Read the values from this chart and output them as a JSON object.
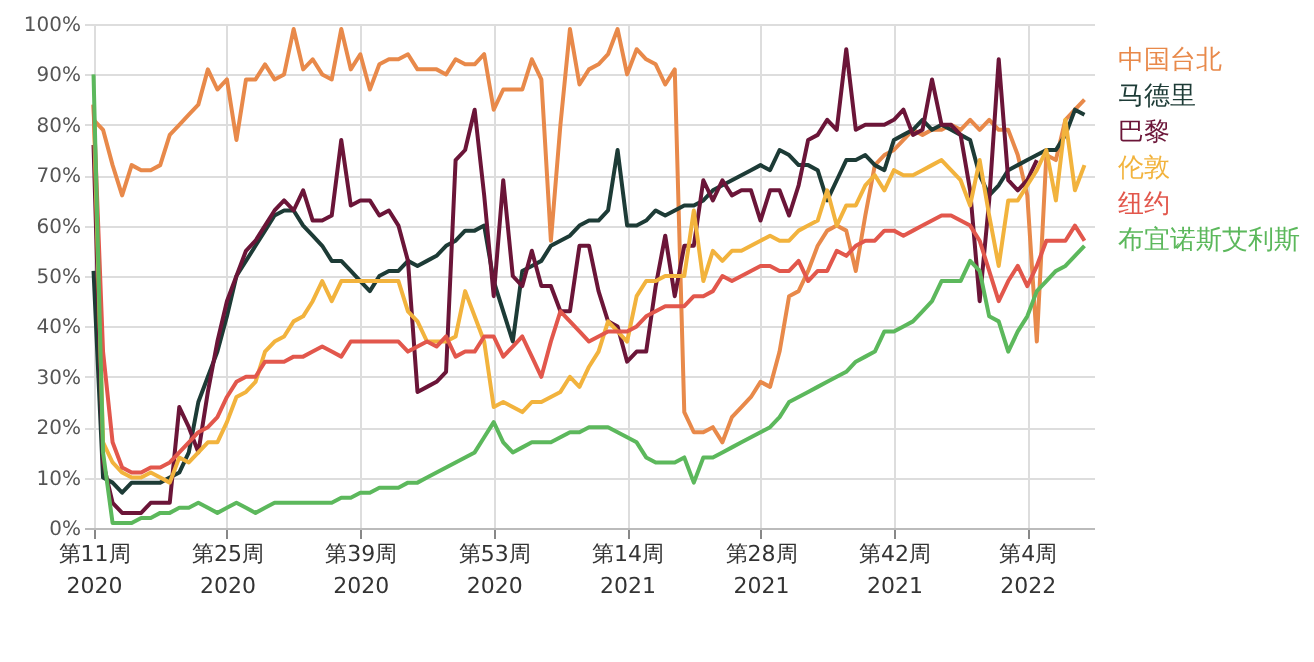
{
  "chart_data": {
    "type": "line",
    "xlim": [
      "2020-03-02",
      "2022-03-14"
    ],
    "ylim": [
      0,
      100
    ],
    "x": [
      "2020-03-09",
      "2020-03-16",
      "2020-03-23",
      "2020-03-30",
      "2020-04-06",
      "2020-04-13",
      "2020-04-20",
      "2020-04-27",
      "2020-05-04",
      "2020-05-11",
      "2020-05-18",
      "2020-05-25",
      "2020-06-01",
      "2020-06-08",
      "2020-06-15",
      "2020-06-22",
      "2020-06-29",
      "2020-07-06",
      "2020-07-13",
      "2020-07-20",
      "2020-07-27",
      "2020-08-03",
      "2020-08-10",
      "2020-08-17",
      "2020-08-24",
      "2020-08-31",
      "2020-09-07",
      "2020-09-14",
      "2020-09-21",
      "2020-09-28",
      "2020-10-05",
      "2020-10-12",
      "2020-10-19",
      "2020-10-26",
      "2020-11-02",
      "2020-11-09",
      "2020-11-16",
      "2020-11-23",
      "2020-11-30",
      "2020-12-07",
      "2020-12-14",
      "2020-12-21",
      "2020-12-28",
      "2021-01-04",
      "2021-01-11",
      "2021-01-18",
      "2021-01-25",
      "2021-02-01",
      "2021-02-08",
      "2021-02-15",
      "2021-02-22",
      "2021-03-01",
      "2021-03-08",
      "2021-03-15",
      "2021-03-22",
      "2021-03-29",
      "2021-04-05",
      "2021-04-12",
      "2021-04-19",
      "2021-04-26",
      "2021-05-03",
      "2021-05-10",
      "2021-05-17",
      "2021-05-24",
      "2021-05-31",
      "2021-06-07",
      "2021-06-14",
      "2021-06-21",
      "2021-06-28",
      "2021-07-05",
      "2021-07-12",
      "2021-07-19",
      "2021-07-26",
      "2021-08-02",
      "2021-08-09",
      "2021-08-16",
      "2021-08-23",
      "2021-08-30",
      "2021-09-06",
      "2021-09-13",
      "2021-09-20",
      "2021-09-27",
      "2021-10-04",
      "2021-10-11",
      "2021-10-18",
      "2021-10-25",
      "2021-11-01",
      "2021-11-08",
      "2021-11-15",
      "2021-11-22",
      "2021-11-29",
      "2021-12-06",
      "2021-12-13",
      "2021-12-20",
      "2021-12-27",
      "2022-01-03",
      "2022-01-10",
      "2022-01-17",
      "2022-01-24",
      "2022-01-31",
      "2022-02-07",
      "2022-02-14",
      "2022-02-21",
      "2022-02-28",
      "2022-03-07"
    ],
    "xticks": [
      {
        "value": "2020-03-09",
        "label": "第11周\n2020"
      },
      {
        "value": "2020-06-15",
        "label": "第25周\n2020"
      },
      {
        "value": "2020-09-21",
        "label": "第39周\n2020"
      },
      {
        "value": "2020-12-28",
        "label": "第53周\n2020"
      },
      {
        "value": "2021-04-05",
        "label": "第14周\n2021"
      },
      {
        "value": "2021-07-12",
        "label": "第28周\n2021"
      },
      {
        "value": "2021-10-18",
        "label": "第42周\n2021"
      },
      {
        "value": "2022-01-24",
        "label": "第4周\n2022"
      }
    ],
    "yticks": [
      {
        "value": 0,
        "label": "0%"
      },
      {
        "value": 10,
        "label": "10%"
      },
      {
        "value": 20,
        "label": "20%"
      },
      {
        "value": 30,
        "label": "30%"
      },
      {
        "value": 40,
        "label": "40%"
      },
      {
        "value": 50,
        "label": "50%"
      },
      {
        "value": 60,
        "label": "60%"
      },
      {
        "value": 70,
        "label": "70%"
      },
      {
        "value": 80,
        "label": "80%"
      },
      {
        "value": 90,
        "label": "90%"
      },
      {
        "value": 100,
        "label": "100%"
      }
    ],
    "grid": true,
    "legend": "right",
    "line_style": "solid",
    "marker": "none",
    "series": [
      {
        "name": "中国台北",
        "color": "#e8894a",
        "values": [
          81,
          79,
          72,
          66,
          72,
          71,
          71,
          72,
          78,
          80,
          82,
          84,
          91,
          87,
          89,
          77,
          89,
          89,
          92,
          89,
          90,
          99,
          91,
          93,
          90,
          89,
          99,
          91,
          94,
          87,
          92,
          93,
          93,
          94,
          91,
          91,
          91,
          90,
          93,
          92,
          92,
          94,
          83,
          87,
          87,
          87,
          93,
          89,
          57,
          80,
          99,
          88,
          91,
          92,
          94,
          99,
          90,
          95,
          93,
          92,
          88,
          91,
          23,
          19,
          19,
          20,
          17,
          22,
          24,
          26,
          29,
          28,
          35,
          46,
          47,
          51,
          56,
          59,
          60,
          59,
          51,
          62,
          72,
          74,
          75,
          77,
          79,
          78,
          79,
          79,
          80,
          79,
          81,
          79,
          81,
          79,
          79,
          74,
          66,
          37,
          74,
          73,
          81,
          83,
          85
        ]
      },
      {
        "name": "马德里",
        "color": "#1d3b36",
        "values": [
          51,
          10,
          9,
          7,
          9,
          9,
          9,
          9,
          10,
          11,
          15,
          25,
          30,
          35,
          42,
          50,
          53,
          56,
          59,
          62,
          63,
          63,
          60,
          58,
          56,
          53,
          53,
          51,
          49,
          47,
          50,
          51,
          51,
          53,
          52,
          53,
          54,
          56,
          57,
          59,
          59,
          60,
          49,
          43,
          37,
          51,
          52,
          53,
          56,
          57,
          58,
          60,
          61,
          61,
          63,
          75,
          60,
          60,
          61,
          63,
          62,
          63,
          64,
          64,
          65,
          67,
          68,
          69,
          70,
          71,
          72,
          71,
          75,
          74,
          72,
          72,
          71,
          65,
          69,
          73,
          73,
          74,
          72,
          71,
          77,
          78,
          79,
          81,
          79,
          80,
          79,
          78,
          77,
          70,
          66,
          68,
          71,
          72,
          73,
          74,
          75,
          75,
          78,
          83,
          82
        ]
      },
      {
        "name": "巴黎",
        "color": "#6b1538",
        "values": [
          76,
          13,
          5,
          3,
          3,
          3,
          5,
          5,
          5,
          24,
          20,
          15,
          27,
          37,
          45,
          50,
          55,
          57,
          60,
          63,
          65,
          63,
          67,
          61,
          61,
          62,
          77,
          64,
          65,
          65,
          62,
          63,
          60,
          53,
          27,
          28,
          29,
          31,
          73,
          75,
          83,
          66,
          46,
          69,
          50,
          48,
          55,
          48,
          48,
          43,
          43,
          56,
          56,
          47,
          41,
          40,
          33,
          35,
          35,
          48,
          58,
          46,
          56,
          56,
          69,
          65,
          69,
          66,
          67,
          67,
          61,
          67,
          67,
          62,
          68,
          77,
          78,
          81,
          79,
          95,
          79,
          80,
          80,
          80,
          81,
          83,
          78,
          79,
          89,
          80,
          80,
          78,
          67,
          45,
          65,
          93,
          69,
          67,
          69,
          73,
          null,
          null,
          null,
          null,
          null
        ]
      },
      {
        "name": "伦敦",
        "color": "#f2b33d",
        "values": [
          84,
          17,
          13,
          11,
          10,
          10,
          11,
          10,
          9,
          14,
          13,
          15,
          17,
          17,
          21,
          26,
          27,
          29,
          35,
          37,
          38,
          41,
          42,
          45,
          49,
          45,
          49,
          49,
          49,
          49,
          49,
          49,
          49,
          43,
          41,
          37,
          37,
          37,
          38,
          47,
          42,
          37,
          24,
          25,
          24,
          23,
          25,
          25,
          26,
          27,
          30,
          28,
          32,
          35,
          41,
          39,
          37,
          46,
          49,
          49,
          50,
          50,
          50,
          63,
          49,
          55,
          53,
          55,
          55,
          56,
          57,
          58,
          57,
          57,
          59,
          60,
          61,
          67,
          60,
          64,
          64,
          68,
          70,
          67,
          71,
          70,
          70,
          71,
          72,
          73,
          71,
          69,
          64,
          73,
          62,
          52,
          65,
          65,
          68,
          71,
          75,
          65,
          81,
          67,
          72
        ]
      },
      {
        "name": "纽约",
        "color": "#e2574c",
        "values": [
          84,
          35,
          17,
          12,
          11,
          11,
          12,
          12,
          13,
          15,
          17,
          19,
          20,
          22,
          26,
          29,
          30,
          30,
          33,
          33,
          33,
          34,
          34,
          35,
          36,
          35,
          34,
          37,
          37,
          37,
          37,
          37,
          37,
          35,
          36,
          37,
          36,
          38,
          34,
          35,
          35,
          38,
          38,
          34,
          36,
          38,
          34,
          30,
          37,
          43,
          41,
          39,
          37,
          38,
          39,
          39,
          39,
          40,
          42,
          43,
          44,
          44,
          44,
          46,
          46,
          47,
          50,
          49,
          50,
          51,
          52,
          52,
          51,
          51,
          53,
          49,
          51,
          51,
          55,
          54,
          56,
          57,
          57,
          59,
          59,
          58,
          59,
          60,
          61,
          62,
          62,
          61,
          60,
          57,
          51,
          45,
          49,
          52,
          48,
          52,
          57,
          57,
          57,
          60,
          57
        ]
      },
      {
        "name": "布宜诺斯艾利斯",
        "color": "#5cb85c",
        "values": [
          90,
          15,
          1,
          1,
          1,
          2,
          2,
          3,
          3,
          4,
          4,
          5,
          4,
          3,
          4,
          5,
          4,
          3,
          4,
          5,
          5,
          5,
          5,
          5,
          5,
          5,
          6,
          6,
          7,
          7,
          8,
          8,
          8,
          9,
          9,
          10,
          11,
          12,
          13,
          14,
          15,
          18,
          21,
          17,
          15,
          16,
          17,
          17,
          17,
          18,
          19,
          19,
          20,
          20,
          20,
          19,
          18,
          17,
          14,
          13,
          13,
          13,
          14,
          9,
          14,
          14,
          15,
          16,
          17,
          18,
          19,
          20,
          22,
          25,
          26,
          27,
          28,
          29,
          30,
          31,
          33,
          34,
          35,
          39,
          39,
          40,
          41,
          43,
          45,
          49,
          49,
          49,
          53,
          51,
          42,
          41,
          35,
          39,
          42,
          47,
          49,
          51,
          52,
          54,
          56
        ]
      }
    ]
  }
}
